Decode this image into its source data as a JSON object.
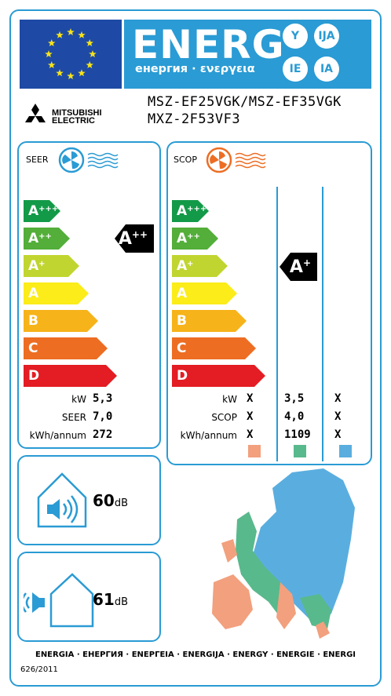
{
  "header": {
    "energ": "ENERG",
    "energ_sub": "енергия · ενεργεια",
    "lang_codes": [
      "Y",
      "IJA",
      "IE",
      "IA"
    ],
    "colors": {
      "eu_blue": "#1e4aa5",
      "banner_blue": "#2a9bd4",
      "star": "#f5e21b"
    }
  },
  "brand": {
    "line1": "MITSUBISHI",
    "line2": "ELECTRIC",
    "logo_icon": "three-diamonds-icon"
  },
  "models": {
    "line1": "MSZ-EF25VGK/MSZ-EF35VGK",
    "line2": "MXZ-2F53VF3"
  },
  "seer_panel": {
    "title": "SEER",
    "icon": "fan-blue-icon",
    "classes": [
      "A+++",
      "A++",
      "A+",
      "A",
      "B",
      "C",
      "D"
    ],
    "indicator": "A++",
    "rows": [
      {
        "label": "kW",
        "value": "5,3"
      },
      {
        "label": "SEER",
        "value": "7,0"
      },
      {
        "label": "kWh/annum",
        "value": "272"
      }
    ]
  },
  "scop_panel": {
    "title": "SCOP",
    "icon": "fan-orange-icon",
    "classes": [
      "A+++",
      "A++",
      "A+",
      "A",
      "B",
      "C",
      "D"
    ],
    "indicator": "A+",
    "rows": [
      {
        "label": "kW",
        "values": [
          "X",
          "3,5",
          "X"
        ]
      },
      {
        "label": "SCOP",
        "values": [
          "X",
          "4,0",
          "X"
        ]
      },
      {
        "label": "kWh/annum",
        "values": [
          "X",
          "1109",
          "X"
        ]
      }
    ],
    "zone_colors": [
      "#f2a07e",
      "#58b98c",
      "#5aaedf"
    ]
  },
  "class_colors": [
    "#129a48",
    "#53ae3a",
    "#c1d530",
    "#fbec1a",
    "#f6b31a",
    "#ed6d23",
    "#e31d23"
  ],
  "noise_indoor": {
    "value": "60",
    "unit": "dB",
    "icon": "indoor-speaker-icon"
  },
  "noise_outdoor": {
    "value": "61",
    "unit": "dB",
    "icon": "outdoor-speaker-icon"
  },
  "footer": {
    "languages": "ENERGIA · ЕНЕРГИЯ · ΕΝΕΡΓΕΙΑ · ENERGIJA · ENERGY · ENERGIE · ENERGI",
    "regulation": "626/2011"
  }
}
